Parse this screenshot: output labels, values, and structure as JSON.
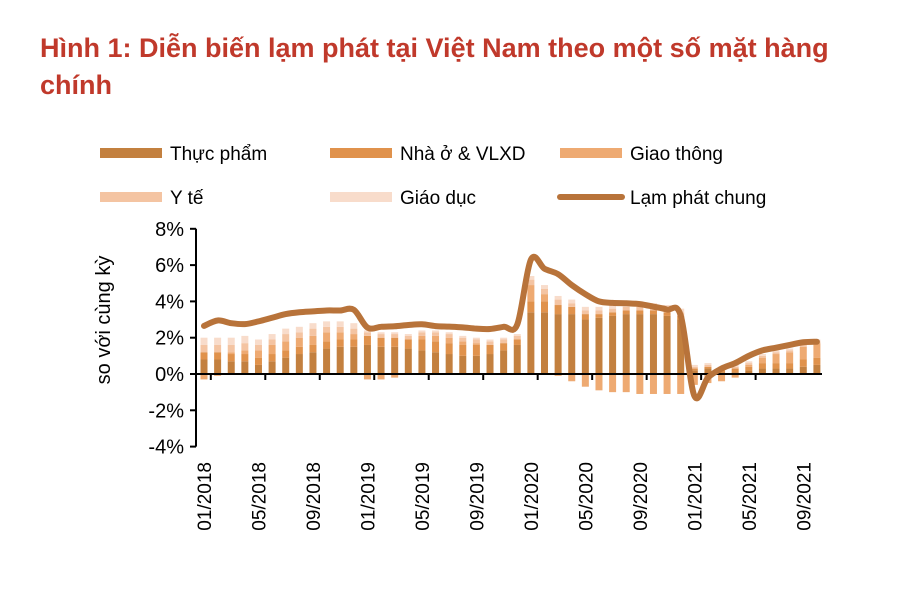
{
  "chart_data": {
    "type": "bar",
    "title": "Hình 1: Diễn biến lạm phát tại Việt Nam theo một số mặt hàng chính",
    "xlabel": "",
    "ylabel": "so với cùng kỳ",
    "ylim": [
      -4,
      8
    ],
    "yticks": [
      "8%",
      "6%",
      "4%",
      "2%",
      "0%",
      "-2%",
      "-4%"
    ],
    "ytick_values": [
      8,
      6,
      4,
      2,
      0,
      -2,
      -4
    ],
    "xtick_labels": [
      "01/2018",
      "05/2018",
      "09/2018",
      "01/2019",
      "05/2019",
      "09/2019",
      "01/2020",
      "05/2020",
      "09/2020",
      "01/2021",
      "05/2021",
      "09/2021"
    ],
    "categories": [
      "01/2018",
      "02/2018",
      "03/2018",
      "04/2018",
      "05/2018",
      "06/2018",
      "07/2018",
      "08/2018",
      "09/2018",
      "10/2018",
      "11/2018",
      "12/2018",
      "01/2019",
      "02/2019",
      "03/2019",
      "04/2019",
      "05/2019",
      "06/2019",
      "07/2019",
      "08/2019",
      "09/2019",
      "10/2019",
      "11/2019",
      "12/2019",
      "01/2020",
      "02/2020",
      "03/2020",
      "04/2020",
      "05/2020",
      "06/2020",
      "07/2020",
      "08/2020",
      "09/2020",
      "10/2020",
      "11/2020",
      "12/2020",
      "01/2021",
      "02/2021",
      "03/2021",
      "04/2021",
      "05/2021",
      "06/2021",
      "07/2021",
      "08/2021",
      "09/2021",
      "10/2021"
    ],
    "legend_position": "top",
    "series": [
      {
        "name": "Thực phẩm",
        "type": "stacked-bar",
        "color": "#c3803f",
        "values": [
          0.8,
          0.8,
          0.7,
          0.7,
          0.5,
          0.7,
          0.9,
          1.1,
          1.2,
          1.4,
          1.5,
          1.5,
          1.6,
          1.5,
          1.5,
          1.4,
          1.3,
          1.2,
          1.1,
          1.0,
          1.0,
          1.1,
          1.3,
          1.6,
          3.4,
          3.4,
          3.3,
          3.3,
          3.0,
          3.1,
          3.2,
          3.3,
          3.3,
          3.3,
          3.2,
          3.0,
          0.2,
          0.3,
          0.1,
          0.1,
          0.2,
          0.3,
          0.3,
          0.3,
          0.4,
          0.5
        ]
      },
      {
        "name": "Nhà ở & VLXD",
        "type": "stacked-bar",
        "color": "#e0924c",
        "values": [
          0.4,
          0.4,
          0.4,
          0.4,
          0.4,
          0.4,
          0.4,
          0.4,
          0.4,
          0.4,
          0.4,
          0.4,
          0.5,
          0.5,
          0.5,
          0.5,
          0.6,
          0.6,
          0.6,
          0.6,
          0.6,
          0.5,
          0.4,
          0.3,
          0.6,
          0.6,
          0.5,
          0.4,
          0.3,
          0.2,
          0.2,
          0.2,
          0.2,
          0.2,
          0.2,
          0.2,
          0.1,
          0.1,
          0.1,
          0.2,
          0.2,
          0.3,
          0.3,
          0.3,
          0.4,
          0.4
        ]
      },
      {
        "name": "Giao thông",
        "type": "stacked-bar",
        "color": "#eeaa72",
        "values": [
          -0.3,
          -0.1,
          0.1,
          0.2,
          0.4,
          0.5,
          0.5,
          0.5,
          0.5,
          0.5,
          0.4,
          0.3,
          -0.3,
          -0.3,
          -0.2,
          0,
          0.2,
          0.3,
          0.3,
          0.2,
          0.1,
          0,
          0,
          0,
          0.9,
          0.4,
          -0.1,
          -0.4,
          -0.7,
          -0.9,
          -1.0,
          -1.0,
          -1.1,
          -1.1,
          -1.1,
          -1.1,
          -0.6,
          -0.5,
          -0.4,
          -0.2,
          0.1,
          0.3,
          0.5,
          0.6,
          0.7,
          0.8
        ]
      },
      {
        "name": "Y tế",
        "type": "stacked-bar",
        "color": "#f4c4a2",
        "values": [
          0.4,
          0.4,
          0.4,
          0.4,
          0.3,
          0.3,
          0.4,
          0.3,
          0.4,
          0.3,
          0.3,
          0.3,
          0.2,
          0.2,
          0.2,
          0.2,
          0.2,
          0.2,
          0.2,
          0.2,
          0.2,
          0.2,
          0.2,
          0.2,
          0.3,
          0.3,
          0.3,
          0.2,
          0.2,
          0.2,
          0.2,
          0.2,
          0.2,
          0.2,
          0.2,
          0.2,
          0.1,
          0.1,
          0.1,
          0.1,
          0.1,
          0.1,
          0.1,
          0.1,
          0.1,
          0.1
        ]
      },
      {
        "name": "Giáo dục",
        "type": "stacked-bar",
        "color": "#f8dccb",
        "values": [
          0.4,
          0.4,
          0.4,
          0.4,
          0.3,
          0.3,
          0.3,
          0.3,
          0.3,
          0.3,
          0.3,
          0.3,
          0.1,
          0.1,
          0.1,
          0.1,
          0.1,
          0.1,
          0.1,
          0.1,
          0.1,
          0.1,
          0.1,
          0.1,
          0.2,
          0.2,
          0.2,
          0.2,
          0.2,
          0.2,
          0.2,
          0.2,
          0.2,
          0.2,
          0.2,
          0.2,
          0.1,
          0.1,
          0.1,
          0.1,
          0.1,
          0.1,
          0.1,
          0.1,
          0.1,
          0.1
        ]
      },
      {
        "name": "Lạm phát chung",
        "type": "line",
        "color": "#b8733a",
        "values": [
          2.65,
          2.95,
          2.8,
          2.75,
          2.9,
          3.1,
          3.3,
          3.4,
          3.45,
          3.5,
          3.5,
          3.54,
          2.56,
          2.6,
          2.63,
          2.7,
          2.74,
          2.64,
          2.61,
          2.57,
          2.5,
          2.48,
          2.6,
          2.73,
          6.3,
          5.8,
          5.5,
          4.9,
          4.4,
          4.0,
          3.92,
          3.9,
          3.85,
          3.71,
          3.55,
          3.23,
          -1.2,
          -0.2,
          0.3,
          0.6,
          1.0,
          1.3,
          1.45,
          1.6,
          1.75,
          1.78
        ]
      }
    ]
  }
}
